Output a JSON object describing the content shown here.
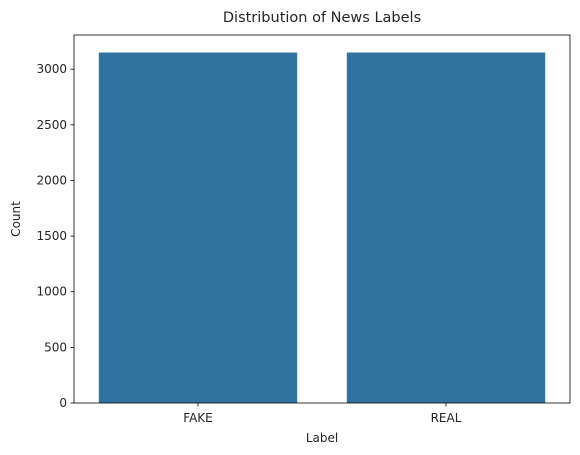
{
  "chart_data": {
    "type": "bar",
    "title": "Distribution of News Labels",
    "xlabel": "Label",
    "ylabel": "Count",
    "categories": [
      "FAKE",
      "REAL"
    ],
    "values": [
      3150,
      3150
    ],
    "ylim": [
      0,
      3307.5
    ],
    "yticks": [
      0,
      500,
      1000,
      1500,
      2000,
      2500,
      3000
    ],
    "grid": false,
    "bar_color": "#3274a1"
  }
}
